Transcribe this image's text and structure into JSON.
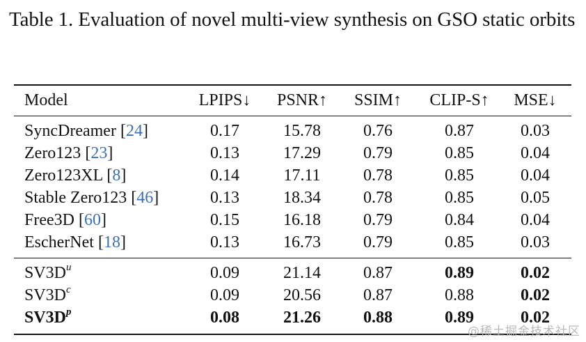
{
  "caption": "Table 1. Evaluation of novel multi-view synthesis on GSO static orbits",
  "table": {
    "headers": [
      "Model",
      "LPIPS↓",
      "PSNR↑",
      "SSIM↑",
      "CLIP-S↑",
      "MSE↓"
    ],
    "group1": [
      {
        "name": "SyncDreamer",
        "cite": "24",
        "lpips": "0.17",
        "psnr": "15.78",
        "ssim": "0.76",
        "clips": "0.87",
        "mse": "0.03"
      },
      {
        "name": "Zero123",
        "cite": "23",
        "lpips": "0.13",
        "psnr": "17.29",
        "ssim": "0.79",
        "clips": "0.85",
        "mse": "0.04"
      },
      {
        "name": "Zero123XL",
        "cite": "8",
        "lpips": "0.14",
        "psnr": "17.11",
        "ssim": "0.78",
        "clips": "0.85",
        "mse": "0.04"
      },
      {
        "name": "Stable Zero123",
        "cite": "46",
        "lpips": "0.13",
        "psnr": "18.34",
        "ssim": "0.78",
        "clips": "0.85",
        "mse": "0.05"
      },
      {
        "name": "Free3D",
        "cite": "60",
        "lpips": "0.15",
        "psnr": "16.18",
        "ssim": "0.79",
        "clips": "0.84",
        "mse": "0.04"
      },
      {
        "name": "EscherNet",
        "cite": "18",
        "lpips": "0.13",
        "psnr": "16.73",
        "ssim": "0.79",
        "clips": "0.85",
        "mse": "0.03"
      }
    ],
    "group2": [
      {
        "name": "SV3D",
        "sup": "u",
        "lpips": "0.09",
        "psnr": "21.14",
        "ssim": "0.87",
        "clips": "0.89",
        "mse": "0.02"
      },
      {
        "name": "SV3D",
        "sup": "c",
        "lpips": "0.09",
        "psnr": "20.56",
        "ssim": "0.87",
        "clips": "0.88",
        "mse": "0.02"
      },
      {
        "name": "SV3D",
        "sup": "p",
        "lpips": "0.08",
        "psnr": "21.26",
        "ssim": "0.88",
        "clips": "0.89",
        "mse": "0.02"
      }
    ]
  },
  "watermark": "@稀土掘金技术社区"
}
